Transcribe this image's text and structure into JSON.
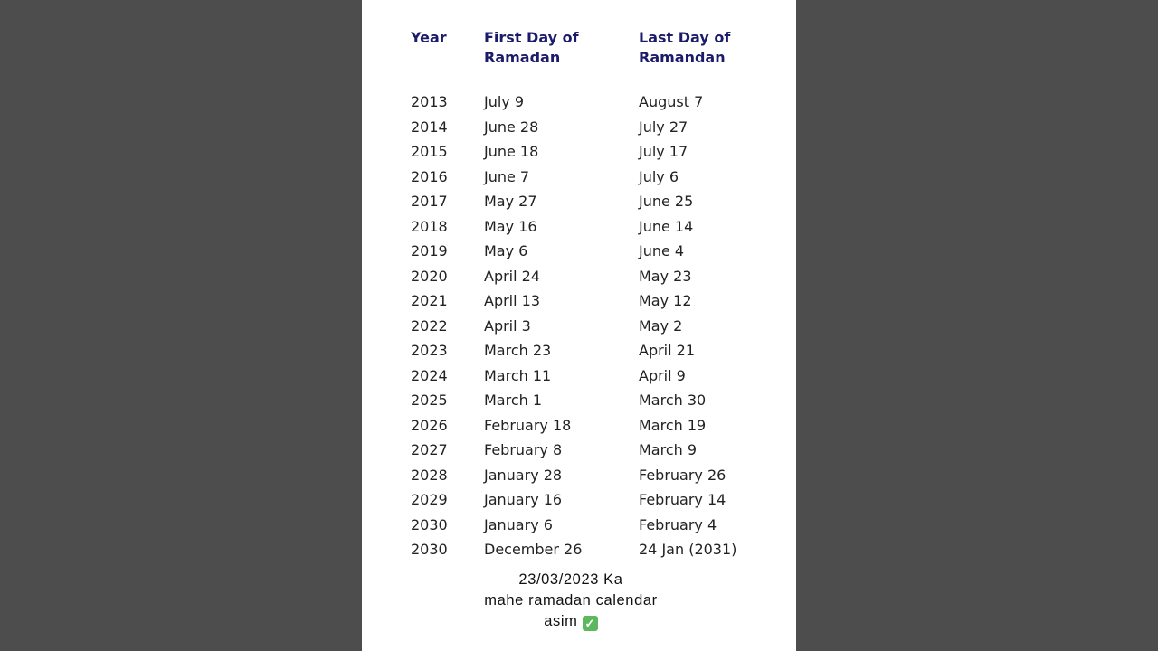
{
  "table": {
    "headers": {
      "year": "Year",
      "first_line1": "First Day of",
      "first_line2": "Ramadan",
      "last_line1": "Last Day of",
      "last_line2": "Ramandan"
    },
    "rows": [
      [
        "2013",
        "July 9",
        "August 7"
      ],
      [
        "2014",
        "June 28",
        "July 27"
      ],
      [
        "2015",
        "June 18",
        "July 17"
      ],
      [
        "2016",
        "June 7",
        "July 6"
      ],
      [
        "2017",
        "May 27",
        "June 25"
      ],
      [
        "2018",
        "May 16",
        "June 14"
      ],
      [
        "2019",
        "May 6",
        "June 4"
      ],
      [
        "2020",
        "April 24",
        "May 23"
      ],
      [
        "2021",
        "April 13",
        "May 12"
      ],
      [
        "2022",
        "April 3",
        "May 2"
      ],
      [
        "2023",
        "March 23",
        "April 21"
      ],
      [
        "2024",
        "March 11",
        "April 9"
      ],
      [
        "2025",
        "March 1",
        "March 30"
      ],
      [
        "2026",
        "February 18",
        "March 19"
      ],
      [
        "2027",
        "February 8",
        "March 9"
      ],
      [
        "2028",
        "January 28",
        "February 26"
      ],
      [
        "2029",
        "January 16",
        "February 14"
      ],
      [
        "2030",
        "January 6",
        "February 4"
      ],
      [
        "2030",
        "December 26",
        "24 Jan (2031)"
      ]
    ]
  },
  "caption": {
    "line1": "23/03/2023 Ka",
    "line2": "mahe ramadan calendar",
    "line3": "asim",
    "emoji_icon": "check-mark-button-icon"
  },
  "colors": {
    "header": "#1b1b6b",
    "check": "#5cb85c"
  }
}
